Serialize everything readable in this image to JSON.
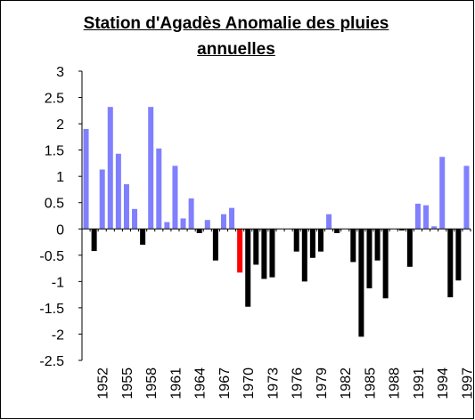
{
  "chart_data": {
    "type": "bar",
    "title": "Station d'Agadès Anomalie des pluies annuelles",
    "categories": [
      null,
      null,
      "1952",
      null,
      null,
      "1955",
      null,
      null,
      "1958",
      null,
      null,
      "1961",
      null,
      null,
      "1964",
      null,
      null,
      "1967",
      null,
      null,
      "1970",
      null,
      null,
      "1973",
      null,
      null,
      "1976",
      null,
      null,
      "1979",
      null,
      null,
      "1982",
      null,
      null,
      "1985",
      null,
      null,
      "1988",
      null,
      null,
      "1991",
      null,
      null,
      "1994",
      null,
      null,
      "1997"
    ],
    "values": [
      1.9,
      -0.42,
      1.13,
      2.32,
      1.43,
      0.85,
      0.38,
      -0.3,
      2.32,
      1.53,
      0.13,
      1.2,
      0.2,
      0.58,
      -0.08,
      0.17,
      -0.6,
      0.28,
      0.4,
      -0.83,
      -1.48,
      -0.68,
      -0.95,
      -0.92,
      0,
      0,
      -0.43,
      -1.0,
      -0.55,
      -0.43,
      0.28,
      -0.08,
      0,
      -0.63,
      -2.05,
      -1.13,
      -0.6,
      -1.32,
      0,
      -0.03,
      -0.72,
      0.48,
      0.45,
      0.05,
      1.37,
      -1.3,
      -0.98,
      1.2
    ],
    "positive_color": "#8080ff",
    "negative_color": "#000000",
    "highlight": {
      "index": 19,
      "color": "#ff0000"
    },
    "ylim": [
      -2.5,
      3
    ],
    "yticks": [
      -2.5,
      -2,
      -1.5,
      -1,
      -0.5,
      0,
      0.5,
      1,
      1.5,
      2,
      2.5,
      3
    ],
    "grid": false
  }
}
